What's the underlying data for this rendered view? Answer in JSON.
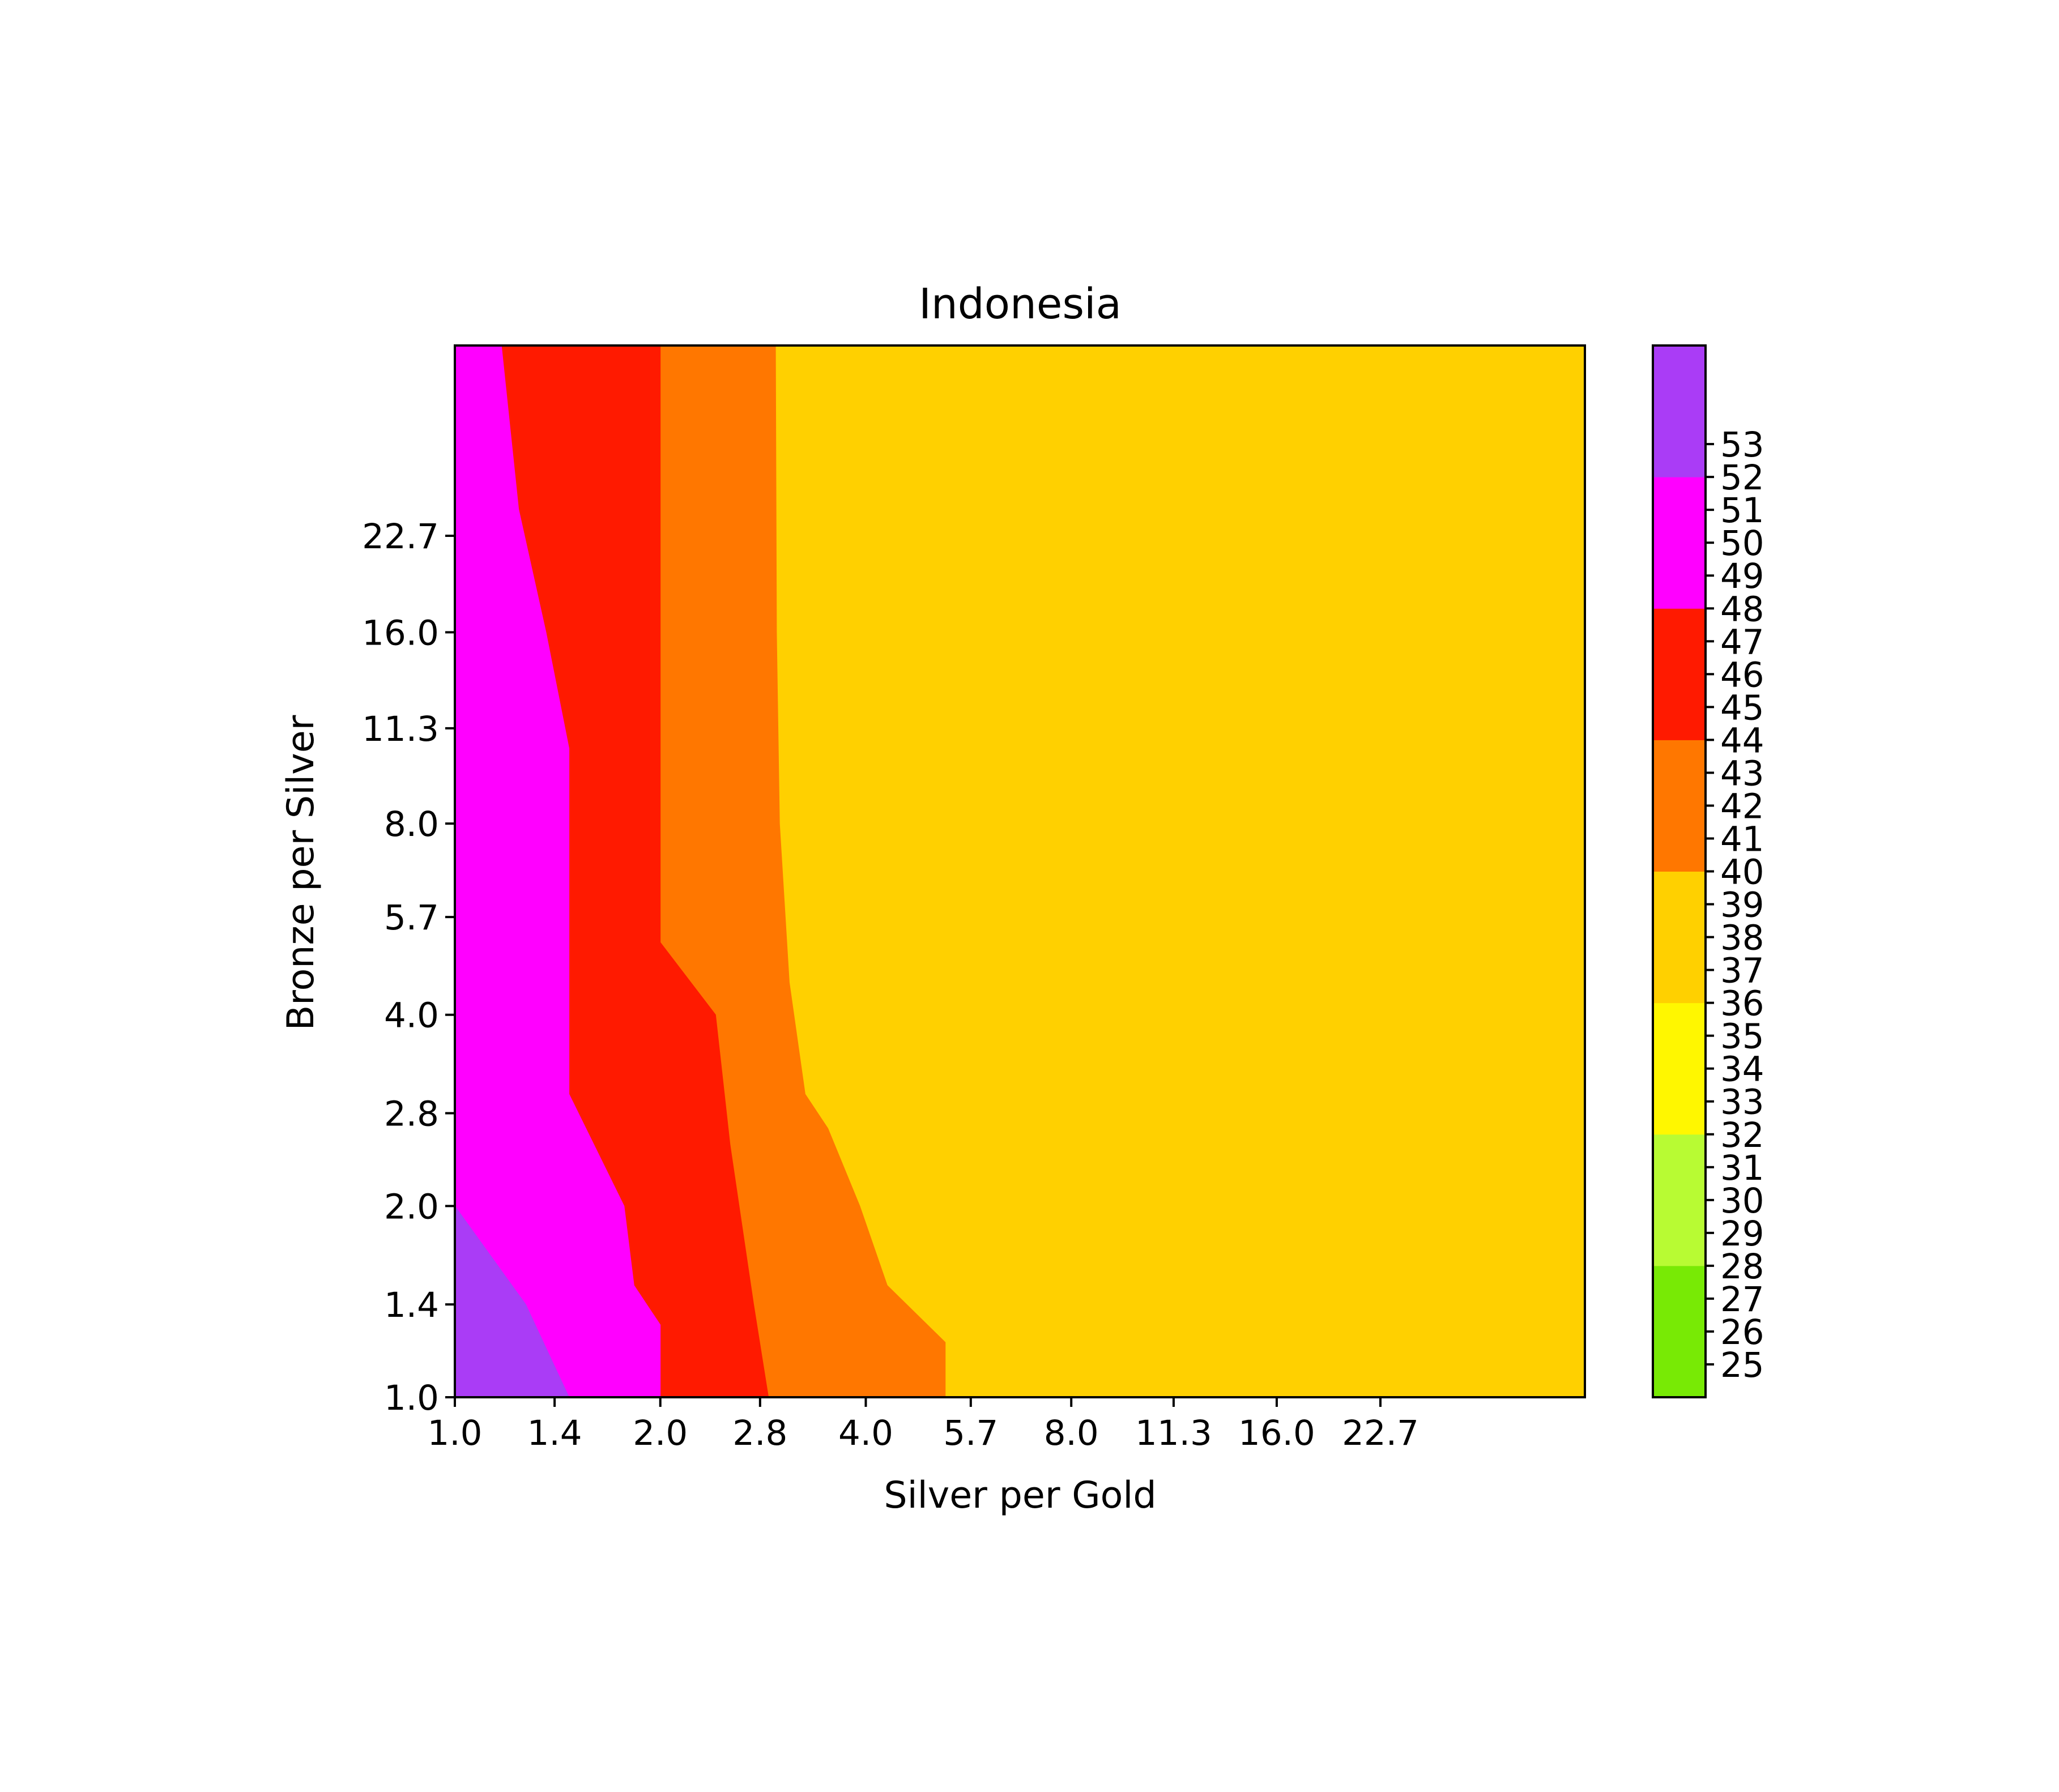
{
  "chart_data": {
    "type": "heatmap",
    "subtype": "filled-contour",
    "title": "Indonesia",
    "xlabel": "Silver per Gold",
    "ylabel": "Bronze per Silver",
    "x_scale": "log2",
    "y_scale": "log2",
    "xlim": [
      1.0,
      45.25
    ],
    "ylim": [
      1.0,
      45.25
    ],
    "x_ticks": [
      "1.0",
      "1.4",
      "2.0",
      "2.8",
      "4.0",
      "5.7",
      "8.0",
      "11.3",
      "16.0",
      "22.7"
    ],
    "y_ticks": [
      "1.0",
      "1.4",
      "2.0",
      "2.8",
      "4.0",
      "5.7",
      "8.0",
      "11.3",
      "16.0",
      "22.7"
    ],
    "bands": [
      {
        "range": [
          36,
          40
        ],
        "color": "#ffd000"
      },
      {
        "range": [
          40,
          44
        ],
        "color": "#ff7700"
      },
      {
        "range": [
          44,
          48
        ],
        "color": "#ff1a00"
      },
      {
        "range": [
          48,
          52
        ],
        "color": "#ff00ff"
      },
      {
        "range": [
          52,
          56
        ],
        "color": "#aa3cf6"
      }
    ],
    "contours": [
      {
        "level": 40,
        "points": [
          [
            5.23,
            1.0
          ],
          [
            5.23,
            1.22
          ],
          [
            4.3,
            1.5
          ],
          [
            3.92,
            2.0
          ],
          [
            3.52,
            2.65
          ],
          [
            3.26,
            3.0
          ],
          [
            3.09,
            4.5
          ],
          [
            2.99,
            8.0
          ],
          [
            2.96,
            16.0
          ],
          [
            2.95,
            45.25
          ]
        ]
      },
      {
        "level": 44,
        "points": [
          [
            2.88,
            1.0
          ],
          [
            2.74,
            1.4
          ],
          [
            2.53,
            2.5
          ],
          [
            2.41,
            4.0
          ],
          [
            2.0,
            5.2
          ],
          [
            2.0,
            45.25
          ]
        ]
      },
      {
        "level": 48,
        "points": [
          [
            2.0,
            1.0
          ],
          [
            2.0,
            1.3
          ],
          [
            1.83,
            1.5
          ],
          [
            1.77,
            2.0
          ],
          [
            1.47,
            3.0
          ],
          [
            1.47,
            10.5
          ],
          [
            1.36,
            16.0
          ],
          [
            1.24,
            25.0
          ],
          [
            1.17,
            45.25
          ]
        ]
      },
      {
        "level": 52,
        "points": [
          [
            1.47,
            1.0
          ],
          [
            1.27,
            1.4
          ],
          [
            1.0,
            2.0
          ]
        ]
      }
    ],
    "colorbar": {
      "tick_labels": [
        "25",
        "26",
        "27",
        "28",
        "29",
        "30",
        "31",
        "32",
        "33",
        "34",
        "35",
        "36",
        "37",
        "38",
        "39",
        "40",
        "41",
        "42",
        "43",
        "44",
        "45",
        "46",
        "47",
        "48",
        "49",
        "50",
        "51",
        "52",
        "53"
      ],
      "range": [
        24,
        56
      ],
      "bands": [
        {
          "range": [
            24,
            28
          ],
          "color": "#78ea05"
        },
        {
          "range": [
            28,
            32
          ],
          "color": "#b8fb33"
        },
        {
          "range": [
            32,
            36
          ],
          "color": "#fff700"
        },
        {
          "range": [
            36,
            40
          ],
          "color": "#ffd000"
        },
        {
          "range": [
            40,
            44
          ],
          "color": "#ff7700"
        },
        {
          "range": [
            44,
            48
          ],
          "color": "#ff1a00"
        },
        {
          "range": [
            48,
            52
          ],
          "color": "#ff00ff"
        },
        {
          "range": [
            52,
            56
          ],
          "color": "#aa3cf6"
        }
      ]
    }
  }
}
